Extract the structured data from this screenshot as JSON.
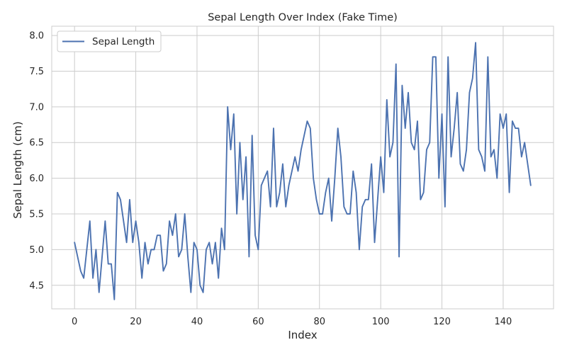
{
  "chart_data": {
    "type": "line",
    "title": "Sepal Length Over Index (Fake Time)",
    "xlabel": "Index",
    "ylabel": "Sepal Length (cm)",
    "xlim": [
      -7.45,
      156.45
    ],
    "ylim": [
      4.17,
      8.13
    ],
    "x_ticks": [
      0,
      20,
      40,
      60,
      80,
      100,
      120,
      140
    ],
    "y_ticks": [
      4.5,
      5.0,
      5.5,
      6.0,
      6.5,
      7.0,
      7.5,
      8.0
    ],
    "grid": true,
    "legend": {
      "position": "top-left"
    },
    "colors": {
      "series": "#4c72b0",
      "grid": "#cccccc",
      "background": "#ffffff"
    },
    "series": [
      {
        "name": "Sepal Length",
        "x_start": 0,
        "x_step": 1,
        "values": [
          5.1,
          4.9,
          4.7,
          4.6,
          5.0,
          5.4,
          4.6,
          5.0,
          4.4,
          4.9,
          5.4,
          4.8,
          4.8,
          4.3,
          5.8,
          5.7,
          5.4,
          5.1,
          5.7,
          5.1,
          5.4,
          5.1,
          4.6,
          5.1,
          4.8,
          5.0,
          5.0,
          5.2,
          5.2,
          4.7,
          4.8,
          5.4,
          5.2,
          5.5,
          4.9,
          5.0,
          5.5,
          4.9,
          4.4,
          5.1,
          5.0,
          4.5,
          4.4,
          5.0,
          5.1,
          4.8,
          5.1,
          4.6,
          5.3,
          5.0,
          7.0,
          6.4,
          6.9,
          5.5,
          6.5,
          5.7,
          6.3,
          4.9,
          6.6,
          5.2,
          5.0,
          5.9,
          6.0,
          6.1,
          5.6,
          6.7,
          5.6,
          5.8,
          6.2,
          5.6,
          5.9,
          6.1,
          6.3,
          6.1,
          6.4,
          6.6,
          6.8,
          6.7,
          6.0,
          5.7,
          5.5,
          5.5,
          5.8,
          6.0,
          5.4,
          6.0,
          6.7,
          6.3,
          5.6,
          5.5,
          5.5,
          6.1,
          5.8,
          5.0,
          5.6,
          5.7,
          5.7,
          6.2,
          5.1,
          5.7,
          6.3,
          5.8,
          7.1,
          6.3,
          6.5,
          7.6,
          4.9,
          7.3,
          6.7,
          7.2,
          6.5,
          6.4,
          6.8,
          5.7,
          5.8,
          6.4,
          6.5,
          7.7,
          7.7,
          6.0,
          6.9,
          5.6,
          7.7,
          6.3,
          6.7,
          7.2,
          6.2,
          6.1,
          6.4,
          7.2,
          7.4,
          7.9,
          6.4,
          6.3,
          6.1,
          7.7,
          6.3,
          6.4,
          6.0,
          6.9,
          6.7,
          6.9,
          5.8,
          6.8,
          6.7,
          6.7,
          6.3,
          6.5,
          6.2,
          5.9
        ]
      }
    ]
  }
}
